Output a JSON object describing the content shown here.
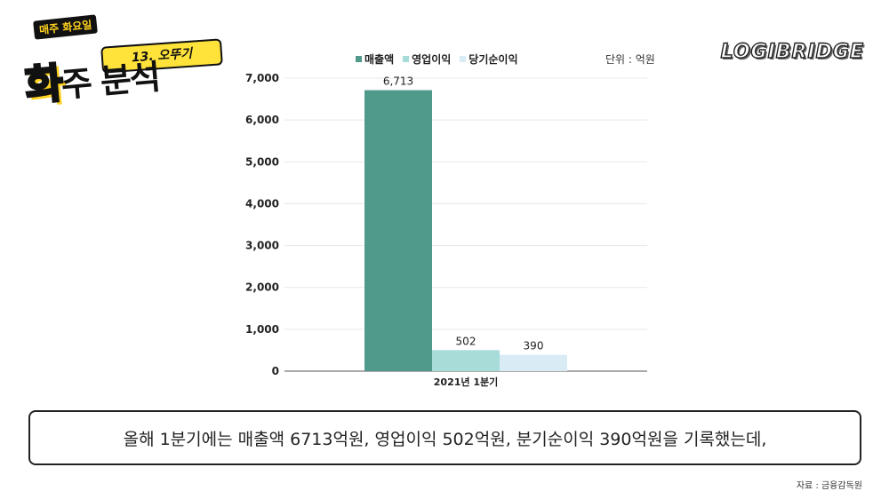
{
  "logo": {
    "tag": "매주 화요일",
    "episode": "13. 오뚜기",
    "title_first": "화",
    "title_rest": "주 분석"
  },
  "brand": "LOGIBRIDGE",
  "unit": "단위 : 억원",
  "caption": "올해 1분기에는 매출액 6713억원, 영업이익 502억원, 분기순이익 390억원을 기록했는데,",
  "source": "자료 : 금융감독원",
  "colors": {
    "revenue": "#4f9a8b",
    "operating_profit": "#a7dcd9",
    "net_profit": "#d9ecf6",
    "grid": "#e8e8e8",
    "axis": "#555555"
  },
  "chart_data": {
    "type": "bar",
    "categories": [
      "2021년 1분기"
    ],
    "series": [
      {
        "name": "매출액",
        "values": [
          6713
        ],
        "label": "6,713"
      },
      {
        "name": "영업이익",
        "values": [
          502
        ],
        "label": "502"
      },
      {
        "name": "당기순이익",
        "values": [
          390
        ],
        "label": "390"
      }
    ],
    "ylim": [
      0,
      7000
    ],
    "yticks": [
      "0",
      "1,000",
      "2,000",
      "3,000",
      "4,000",
      "5,000",
      "6,000",
      "7,000"
    ],
    "grid": true,
    "legend": "top-center"
  }
}
